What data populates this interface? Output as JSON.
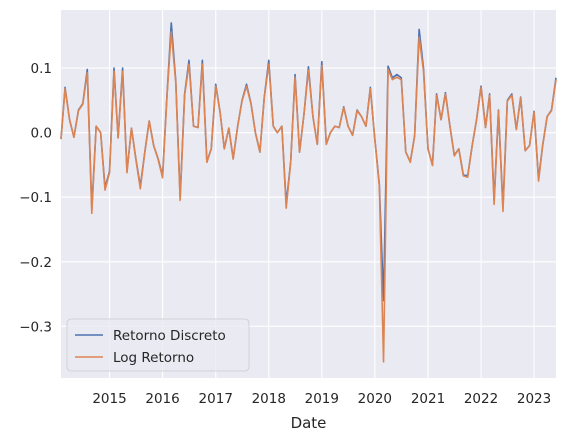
{
  "chart_data": {
    "type": "line",
    "title": "",
    "xlabel": "Date",
    "ylabel": "",
    "grid": true,
    "legend_position": "lower-left",
    "xlim": [
      "2014-02-01",
      "2023-06-01"
    ],
    "ylim": [
      -0.38,
      0.19
    ],
    "x_ticks": [
      "2015",
      "2016",
      "2017",
      "2018",
      "2019",
      "2020",
      "2021",
      "2022",
      "2023"
    ],
    "y_ticks": [
      0.1,
      0.0,
      -0.1,
      -0.2,
      -0.3
    ],
    "y_tick_labels": [
      "0.1",
      "0.0",
      "−0.1",
      "−0.2",
      "−0.3"
    ],
    "x": [
      "2014-02",
      "2014-03",
      "2014-04",
      "2014-05",
      "2014-06",
      "2014-07",
      "2014-08",
      "2014-09",
      "2014-10",
      "2014-11",
      "2014-12",
      "2015-01",
      "2015-02",
      "2015-03",
      "2015-04",
      "2015-05",
      "2015-06",
      "2015-07",
      "2015-08",
      "2015-09",
      "2015-10",
      "2015-11",
      "2015-12",
      "2016-01",
      "2016-02",
      "2016-03",
      "2016-04",
      "2016-05",
      "2016-06",
      "2016-07",
      "2016-08",
      "2016-09",
      "2016-10",
      "2016-11",
      "2016-12",
      "2017-01",
      "2017-02",
      "2017-03",
      "2017-04",
      "2017-05",
      "2017-06",
      "2017-07",
      "2017-08",
      "2017-09",
      "2017-10",
      "2017-11",
      "2017-12",
      "2018-01",
      "2018-02",
      "2018-03",
      "2018-04",
      "2018-05",
      "2018-06",
      "2018-07",
      "2018-08",
      "2018-09",
      "2018-10",
      "2018-11",
      "2018-12",
      "2019-01",
      "2019-02",
      "2019-03",
      "2019-04",
      "2019-05",
      "2019-06",
      "2019-07",
      "2019-08",
      "2019-09",
      "2019-10",
      "2019-11",
      "2019-12",
      "2020-01",
      "2020-02",
      "2020-03",
      "2020-04",
      "2020-05",
      "2020-06",
      "2020-07",
      "2020-08",
      "2020-09",
      "2020-10",
      "2020-11",
      "2020-12",
      "2021-01",
      "2021-02",
      "2021-03",
      "2021-04",
      "2021-05",
      "2021-06",
      "2021-07",
      "2021-08",
      "2021-09",
      "2021-10",
      "2021-11",
      "2021-12",
      "2022-01",
      "2022-02",
      "2022-03",
      "2022-04",
      "2022-05",
      "2022-06",
      "2022-07",
      "2022-08",
      "2022-09",
      "2022-10",
      "2022-11",
      "2022-12",
      "2023-01",
      "2023-02",
      "2023-03",
      "2023-04",
      "2023-05",
      "2023-06"
    ],
    "series": [
      {
        "name": "Retorno Discreto",
        "color": "#4c72b0",
        "values": [
          -0.01,
          0.07,
          0.02,
          -0.007,
          0.035,
          0.045,
          0.098,
          -0.118,
          0.01,
          0.0,
          -0.085,
          -0.06,
          0.1,
          -0.008,
          0.1,
          -0.06,
          0.007,
          -0.04,
          -0.083,
          -0.03,
          0.018,
          -0.02,
          -0.04,
          -0.067,
          0.06,
          0.17,
          0.08,
          -0.1,
          0.06,
          0.112,
          0.01,
          0.008,
          0.112,
          -0.045,
          -0.025,
          0.075,
          0.03,
          -0.025,
          0.007,
          -0.04,
          0.01,
          0.05,
          0.075,
          0.045,
          0.0,
          -0.03,
          0.055,
          0.112,
          0.01,
          0.0,
          0.01,
          -0.11,
          -0.045,
          0.09,
          -0.03,
          0.03,
          0.102,
          0.025,
          -0.018,
          0.11,
          -0.018,
          0.0,
          0.01,
          0.008,
          0.04,
          0.01,
          -0.004,
          0.035,
          0.025,
          0.01,
          0.07,
          -0.01,
          -0.08,
          -0.26,
          0.103,
          0.085,
          0.09,
          0.085,
          -0.03,
          -0.045,
          -0.005,
          0.16,
          0.1,
          -0.025,
          -0.05,
          0.06,
          0.02,
          0.062,
          0.01,
          -0.035,
          -0.025,
          -0.065,
          -0.067,
          -0.02,
          0.02,
          0.072,
          0.008,
          0.06,
          -0.105,
          0.035,
          -0.115,
          0.05,
          0.06,
          0.005,
          0.055,
          -0.028,
          -0.02,
          0.033,
          -0.072,
          -0.02,
          0.025,
          0.035,
          0.085
        ]
      },
      {
        "name": "Log Retorno",
        "color": "#dd8452",
        "values": [
          -0.01,
          0.068,
          0.02,
          -0.007,
          0.034,
          0.044,
          0.093,
          -0.125,
          0.01,
          0.0,
          -0.089,
          -0.062,
          0.095,
          -0.008,
          0.095,
          -0.062,
          0.007,
          -0.041,
          -0.087,
          -0.03,
          0.018,
          -0.02,
          -0.041,
          -0.07,
          0.058,
          0.156,
          0.077,
          -0.105,
          0.058,
          0.106,
          0.01,
          0.008,
          0.106,
          -0.046,
          -0.025,
          0.072,
          0.03,
          -0.025,
          0.007,
          -0.041,
          0.01,
          0.049,
          0.072,
          0.044,
          0.0,
          -0.03,
          0.054,
          0.106,
          0.01,
          0.0,
          0.01,
          -0.117,
          -0.046,
          0.086,
          -0.03,
          0.03,
          0.097,
          0.025,
          -0.018,
          0.104,
          -0.018,
          0.0,
          0.01,
          0.008,
          0.039,
          0.01,
          -0.004,
          0.034,
          0.025,
          0.01,
          0.068,
          -0.01,
          -0.083,
          -0.355,
          0.098,
          0.082,
          0.086,
          0.082,
          -0.03,
          -0.046,
          -0.005,
          0.148,
          0.095,
          -0.025,
          -0.051,
          0.058,
          0.02,
          0.06,
          0.01,
          -0.036,
          -0.025,
          -0.067,
          -0.069,
          -0.02,
          0.02,
          0.07,
          0.008,
          0.058,
          -0.111,
          0.034,
          -0.122,
          0.049,
          0.058,
          0.005,
          0.054,
          -0.028,
          -0.02,
          0.032,
          -0.075,
          -0.02,
          0.025,
          0.034,
          0.082
        ]
      }
    ]
  }
}
